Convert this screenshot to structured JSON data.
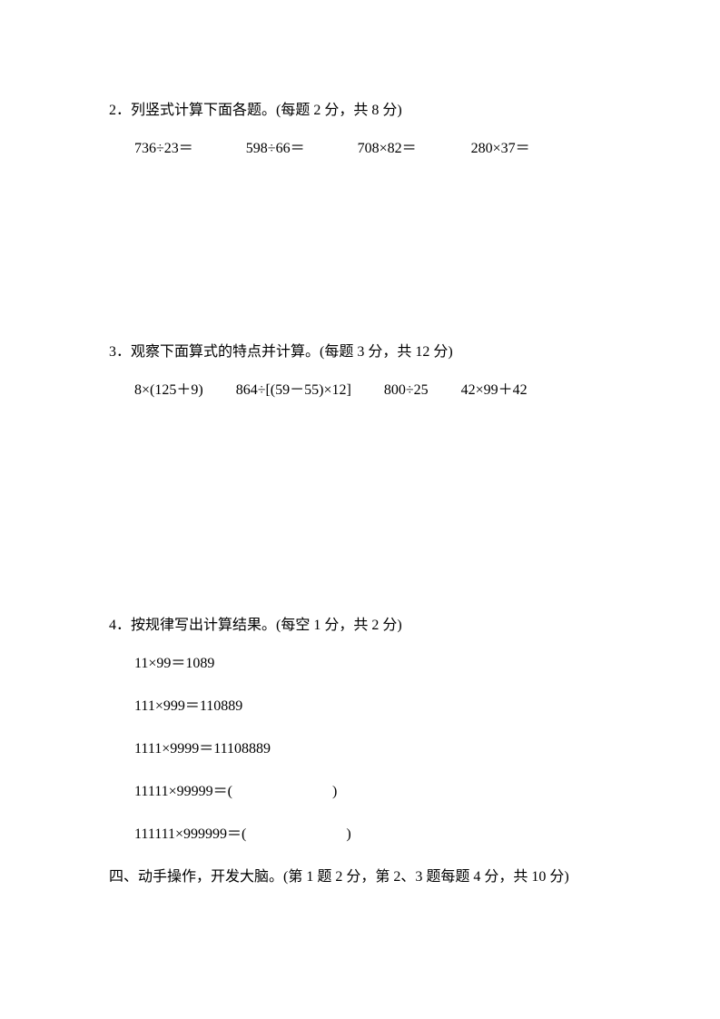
{
  "q2": {
    "title": "2．列竖式计算下面各题。(每题 2 分，共 8 分)",
    "items": [
      "736÷23＝",
      "598÷66＝",
      "708×82＝",
      "280×37＝"
    ]
  },
  "q3": {
    "title": "3．观察下面算式的特点并计算。(每题 3 分，共 12 分)",
    "items": [
      "8×(125＋9)",
      "864÷[(59－55)×12]",
      "800÷25",
      "42×99＋42"
    ]
  },
  "q4": {
    "title": "4．按规律写出计算结果。(每空 1 分，共 2 分)",
    "lines": [
      "11×99＝1089",
      "111×999＝110889",
      "1111×9999＝11108889"
    ],
    "blank1_prefix": "11111×99999＝(",
    "blank1_suffix": ")",
    "blank2_prefix": "111111×999999＝(",
    "blank2_suffix": ")"
  },
  "section4": {
    "title": "四、动手操作，开发大脑。(第 1 题 2 分，第 2、3 题每题 4 分，共 10 分)"
  }
}
